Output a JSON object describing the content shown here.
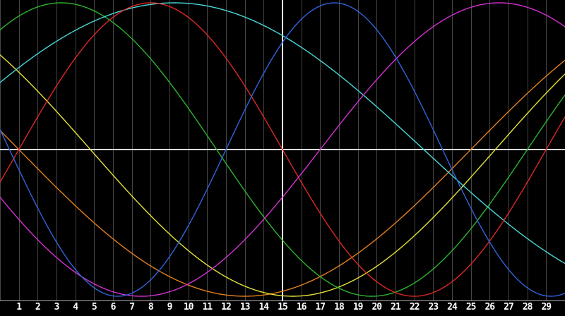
{
  "chart_data": {
    "type": "line",
    "title": "",
    "xlabel": "",
    "ylabel": "",
    "description": "Seven phase-shifted sine curves (biorhythm-style cycles) over a 30-day window",
    "x_axis": {
      "min": 0,
      "max": 30,
      "gridline_step": 1,
      "tick_labels": [
        "1",
        "2",
        "3",
        "4",
        "5",
        "6",
        "7",
        "8",
        "9",
        "10",
        "11",
        "12",
        "13",
        "14",
        "15",
        "16",
        "17",
        "18",
        "19",
        "20",
        "21",
        "22",
        "23",
        "24",
        "25",
        "26",
        "27",
        "28",
        "29"
      ],
      "vertical_marker_day": 15
    },
    "y_axis": {
      "min": -1,
      "max": 1,
      "midline": 0,
      "ticks_visible": false
    },
    "legend": "none",
    "grid": "vertical-only",
    "colors": {
      "background": "#000000",
      "gridline": "#454545",
      "axis_line": "#f4f4f4",
      "today_line": "#ffffff",
      "bottom_separator": "#b0b0b0",
      "tick_label": "#ffffff"
    },
    "series": [
      {
        "name": "orange-48-day-sine",
        "color": "#e2801e",
        "period_days": 48,
        "rising_zero_day": 25,
        "amplitude": 1,
        "values_by_day": [
          0.131,
          0.0,
          -0.131,
          -0.259,
          -0.383,
          -0.5,
          -0.609,
          -0.707,
          -0.793,
          -0.866,
          -0.924,
          -0.966,
          -0.991,
          -1.0,
          -0.991,
          -0.966,
          -0.924,
          -0.866,
          -0.793,
          -0.707,
          -0.609,
          -0.5,
          -0.383,
          -0.259,
          -0.131,
          0.0,
          0.131,
          0.259,
          0.383,
          0.5,
          0.609
        ]
      },
      {
        "name": "yellow-43-day-sine",
        "color": "#e6e23c",
        "period_days": 43,
        "rising_zero_day": 26.3,
        "amplitude": 1,
        "values_by_day": [
          0.646,
          0.527,
          0.398,
          0.26,
          0.117,
          -0.029,
          -0.175,
          -0.316,
          -0.45,
          -0.573,
          -0.68,
          -0.77,
          -0.869,
          -0.931,
          -0.974,
          -0.997,
          -0.998,
          -0.978,
          -0.937,
          -0.876,
          -0.797,
          -0.7,
          -0.588,
          -0.463,
          -0.33,
          -0.189,
          -0.044,
          0.102,
          0.246,
          0.385,
          0.515
        ]
      },
      {
        "name": "green-33-day-sine",
        "color": "#2eb42e",
        "period_days": 33,
        "rising_zero_day": -5,
        "amplitude": 1,
        "values_by_day": [
          0.814,
          0.91,
          0.972,
          0.999,
          0.99,
          0.946,
          0.866,
          0.756,
          0.618,
          0.458,
          0.282,
          0.095,
          -0.095,
          -0.282,
          -0.458,
          -0.618,
          -0.756,
          -0.866,
          -0.946,
          -0.99,
          -0.999,
          -0.972,
          -0.91,
          -0.814,
          -0.691,
          -0.541,
          -0.372,
          -0.189,
          0.0,
          0.189,
          0.372
        ]
      },
      {
        "name": "cyan-53-day-sine",
        "color": "#4ad6d6",
        "period_days": 53,
        "rising_zero_day": -4,
        "amplitude": 1,
        "values_by_day": [
          0.457,
          0.559,
          0.653,
          0.738,
          0.812,
          0.876,
          0.927,
          0.965,
          0.989,
          1.0,
          0.996,
          0.979,
          0.948,
          0.904,
          0.847,
          0.778,
          0.699,
          0.609,
          0.511,
          0.403,
          0.292,
          0.177,
          0.059,
          -0.059,
          -0.177,
          -0.292,
          -0.403,
          -0.508,
          -0.607,
          -0.697,
          -0.776
        ]
      },
      {
        "name": "red-28-day-sine",
        "color": "#dc2828",
        "period_days": 28,
        "rising_zero_day": 1,
        "amplitude": 1,
        "values_by_day": [
          -0.222,
          0.0,
          0.222,
          0.434,
          0.623,
          0.782,
          0.901,
          0.975,
          1.0,
          0.975,
          0.901,
          0.782,
          0.623,
          0.434,
          0.222,
          0.0,
          -0.222,
          -0.434,
          -0.623,
          -0.782,
          -0.901,
          -0.975,
          -1.0,
          -0.975,
          -0.901,
          -0.782,
          -0.623,
          -0.434,
          -0.222,
          0.0,
          0.222
        ]
      },
      {
        "name": "magenta-38-day-sine",
        "color": "#d232d2",
        "period_days": 38,
        "rising_zero_day": 17,
        "amplitude": 1,
        "values_by_day": [
          -0.325,
          -0.476,
          -0.614,
          -0.735,
          -0.837,
          -0.916,
          -0.969,
          -0.997,
          -0.997,
          -0.969,
          -0.916,
          -0.837,
          -0.735,
          -0.614,
          -0.476,
          -0.325,
          -0.165,
          0.0,
          0.165,
          0.325,
          0.476,
          0.614,
          0.735,
          0.837,
          0.916,
          0.969,
          0.997,
          0.997,
          0.969,
          0.916,
          0.837
        ]
      },
      {
        "name": "blue-23-day-sine",
        "color": "#3264dc",
        "period_days": 23,
        "rising_zero_day": 12,
        "amplitude": 1,
        "values_by_day": [
          0.137,
          -0.136,
          -0.398,
          -0.631,
          -0.818,
          -0.943,
          -0.998,
          -0.979,
          -0.887,
          -0.729,
          -0.517,
          -0.266,
          0.0,
          0.27,
          0.52,
          0.731,
          0.888,
          0.979,
          0.998,
          0.943,
          0.817,
          0.63,
          0.398,
          0.136,
          -0.137,
          -0.399,
          -0.632,
          -0.818,
          -0.943,
          -0.998,
          -0.979
        ]
      }
    ]
  }
}
